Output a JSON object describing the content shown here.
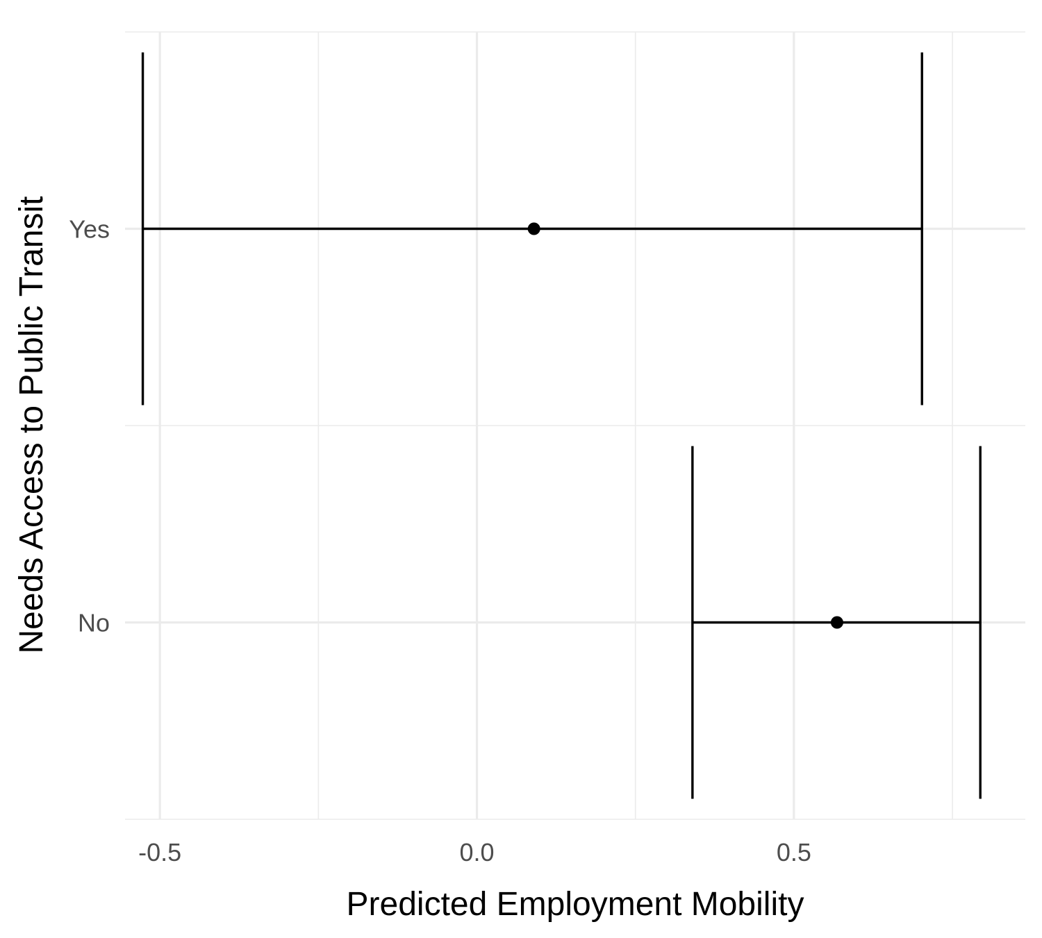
{
  "chart_data": {
    "type": "errorbar",
    "orientation": "horizontal",
    "xlabel": "Predicted Employment Mobility",
    "ylabel": "Needs Access to Public Transit",
    "xlim": [
      -0.555,
      0.865
    ],
    "x_ticks": [
      -0.5,
      0.0,
      0.5
    ],
    "x_tick_labels": [
      "-0.5",
      "0.0",
      "0.5"
    ],
    "categories": [
      "Yes",
      "No"
    ],
    "points": [
      {
        "category": "Yes",
        "estimate": 0.09,
        "lower": -0.527,
        "upper": 0.702
      },
      {
        "category": "No",
        "estimate": 0.568,
        "lower": 0.34,
        "upper": 0.794
      }
    ],
    "grid": true,
    "colors": {
      "grid": "#ebebeb",
      "mark": "#000000",
      "tick_text": "#4d4d4d"
    }
  }
}
